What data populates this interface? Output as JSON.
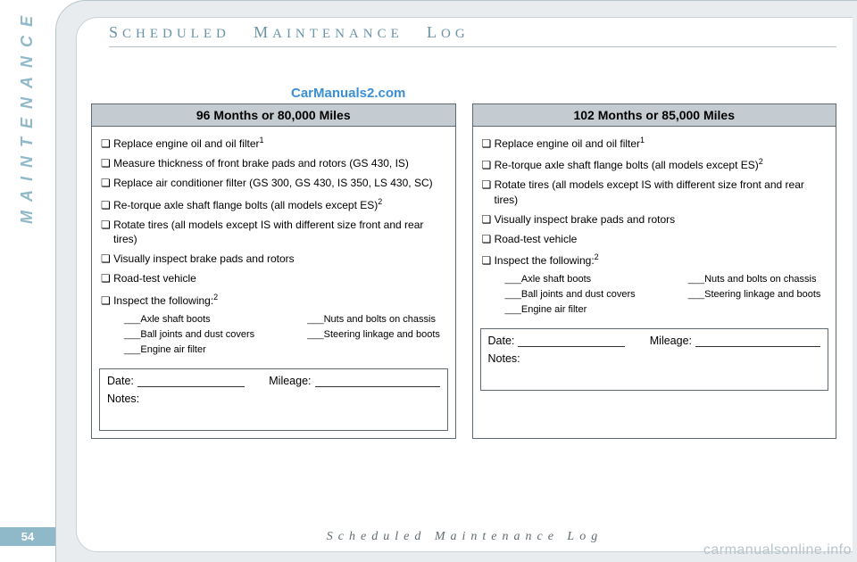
{
  "sidebar_label": "MAINTENANCE",
  "page_number": "54",
  "header": {
    "w1_cap": "S",
    "w1": "CHEDULED",
    "w2_cap": "M",
    "w2": "AINTENANCE",
    "w3_cap": "L",
    "w3": "OG"
  },
  "watermark_top": "CarManuals2.com",
  "footer": "Scheduled  Maintenance  Log",
  "watermark_corner": "carmanualsonline.info",
  "record_labels": {
    "date": "Date:",
    "mileage": "Mileage:",
    "notes": "Notes:"
  },
  "cards": {
    "left": {
      "title": "96 Months or 80,000 Miles",
      "items": [
        {
          "text": "Replace engine oil and oil filter",
          "sup": "1"
        },
        {
          "text": "Measure thickness of front brake pads and rotors (GS 430, IS)"
        },
        {
          "text": "Replace air conditioner filter (GS 300, GS 430, IS 350, LS 430, SC)"
        },
        {
          "text": "Re-torque axle shaft flange bolts (all models except ES)",
          "sup": "2"
        },
        {
          "text": "Rotate tires (all models except IS with different size front and rear tires)"
        },
        {
          "text": "Visually inspect brake pads and rotors"
        },
        {
          "text": "Road-test vehicle"
        },
        {
          "text": "Inspect the following:",
          "sup": "2"
        }
      ],
      "sub_left": [
        "Axle shaft boots",
        "Ball joints and dust covers",
        "Engine air filter"
      ],
      "sub_right": [
        "Nuts and bolts on chassis",
        "Steering linkage and boots"
      ]
    },
    "right": {
      "title": "102 Months or 85,000 Miles",
      "items": [
        {
          "text": "Replace engine oil and oil filter",
          "sup": "1"
        },
        {
          "text": "Re-torque axle shaft flange bolts (all models except ES)",
          "sup": "2"
        },
        {
          "text": "Rotate tires (all models except IS with different size front and rear tires)"
        },
        {
          "text": "Visually inspect brake pads and rotors"
        },
        {
          "text": "Road-test vehicle"
        },
        {
          "text": "Inspect the following:",
          "sup": "2"
        }
      ],
      "sub_left": [
        "Axle shaft boots",
        "Ball joints and dust covers",
        "Engine air filter"
      ],
      "sub_right": [
        "Nuts and bolts on chassis",
        "Steering linkage and boots"
      ]
    }
  }
}
